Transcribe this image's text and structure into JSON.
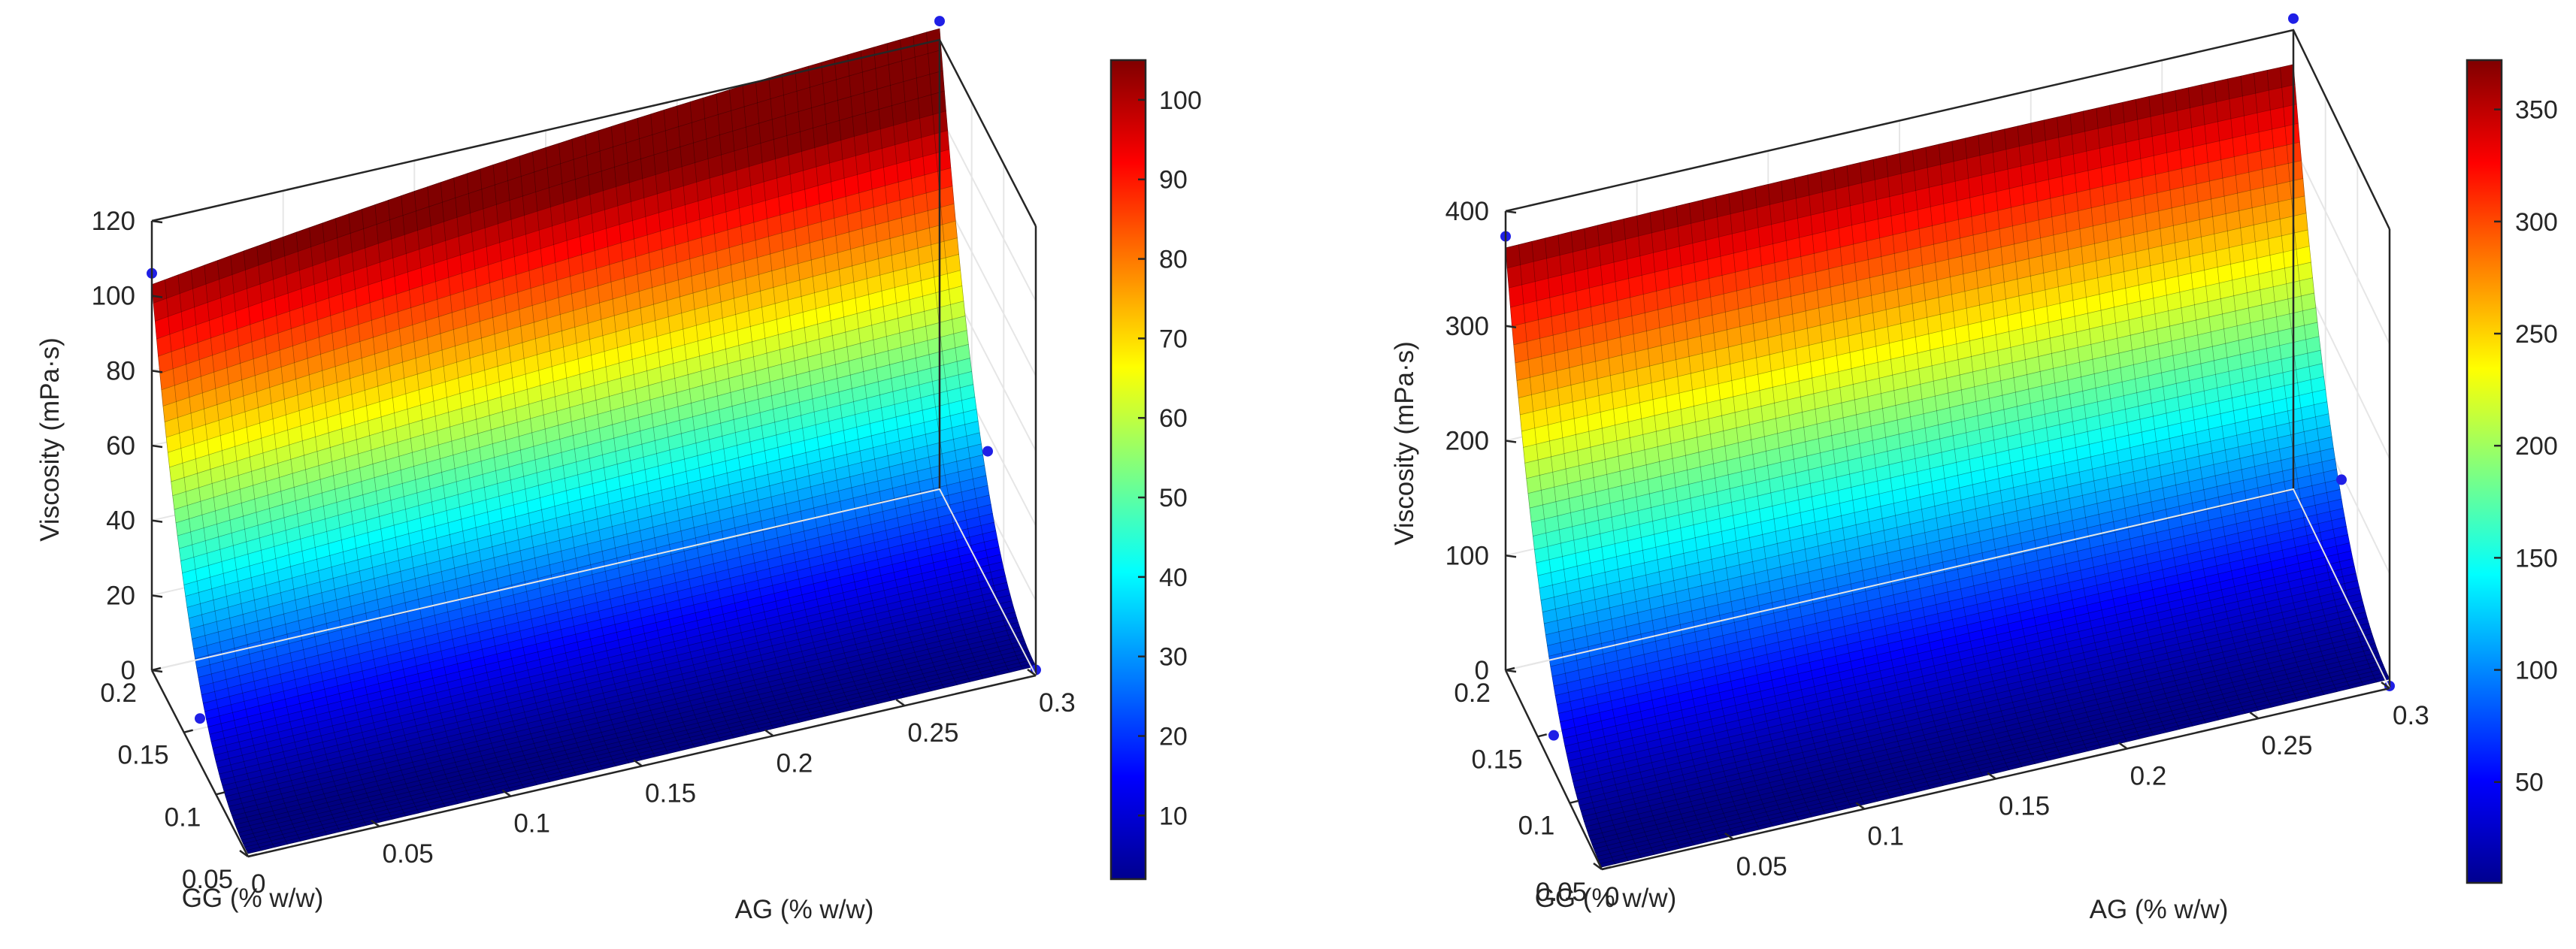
{
  "colors": {
    "axis": "#262626",
    "grid": "#e6e6e6",
    "mesh": "#000000",
    "point": "#1f1fe6"
  },
  "chart_data": [
    {
      "type": "surface",
      "title": "",
      "xlabel": "AG (% w/w)",
      "ylabel": "GG (% w/w)",
      "zlabel": "Viscosity (mPa·s)",
      "xlim": [
        0,
        0.3
      ],
      "ylim": [
        0.05,
        0.2
      ],
      "zlim": [
        0,
        120
      ],
      "xticks": [
        0,
        0.05,
        0.1,
        0.15,
        0.2,
        0.25,
        0.3
      ],
      "yticks": [
        0.05,
        0.1,
        0.15,
        0.2
      ],
      "zticks": [
        0,
        20,
        40,
        60,
        80,
        100,
        120
      ],
      "surface_corners": {
        "ag0_gg005": 0.8,
        "ag03_gg005": 2.5,
        "ag0_gg02": 103,
        "ag03_gg02": 123
      },
      "points": [
        {
          "ag": 0,
          "gg": 0.2,
          "viscosity": 106
        },
        {
          "ag": 0.3,
          "gg": 0.2,
          "viscosity": 125
        },
        {
          "ag": 0.3,
          "gg": 0.125,
          "viscosity": 35
        },
        {
          "ag": 0,
          "gg": 0.125,
          "viscosity": 12
        },
        {
          "ag": 0.3,
          "gg": 0.05,
          "viscosity": 1.5
        }
      ],
      "colorbar": {
        "min": 2,
        "max": 105,
        "ticks": [
          10,
          20,
          30,
          40,
          50,
          60,
          70,
          80,
          90,
          100
        ]
      }
    },
    {
      "type": "surface",
      "title": "",
      "xlabel": "AG (% w/w)",
      "ylabel": "GG (% w/w)",
      "zlabel": "Viscosity (mPa·s)",
      "xlim": [
        0,
        0.3
      ],
      "ylim": [
        0.05,
        0.2
      ],
      "zlim": [
        0,
        400
      ],
      "xticks": [
        0,
        0.05,
        0.1,
        0.15,
        0.2,
        0.25,
        0.3
      ],
      "yticks": [
        0.05,
        0.1,
        0.15,
        0.2
      ],
      "zticks": [
        0,
        100,
        200,
        300,
        400
      ],
      "surface_corners": {
        "ag0_gg005": 2,
        "ag03_gg005": 8,
        "ag0_gg02": 368,
        "ag03_gg02": 370
      },
      "points": [
        {
          "ag": 0,
          "gg": 0.2,
          "viscosity": 378
        },
        {
          "ag": 0.3,
          "gg": 0.2,
          "viscosity": 410
        },
        {
          "ag": 0.3,
          "gg": 0.125,
          "viscosity": 95
        },
        {
          "ag": 0,
          "gg": 0.125,
          "viscosity": 30
        },
        {
          "ag": 0.3,
          "gg": 0.05,
          "viscosity": 2
        }
      ],
      "colorbar": {
        "min": 5,
        "max": 372,
        "ticks": [
          50,
          100,
          150,
          200,
          250,
          300,
          350
        ]
      }
    }
  ]
}
